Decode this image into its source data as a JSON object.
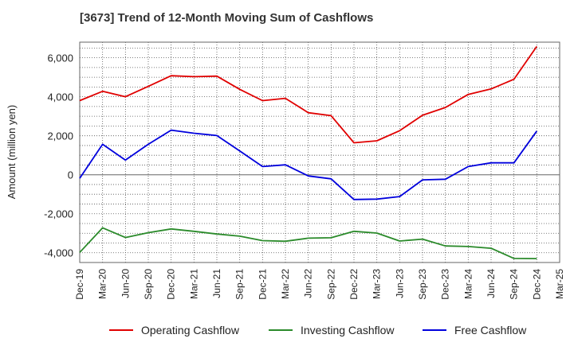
{
  "chart_data": {
    "type": "line",
    "title": "[3673]  Trend of 12-Month Moving Sum of Cashflows",
    "ylabel": "Amount (million yen)",
    "xlabel": "",
    "ylim": [
      -4500,
      6800
    ],
    "yticks": [
      -4000,
      -2000,
      0,
      2000,
      4000,
      6000
    ],
    "ytick_labels": [
      "-4,000",
      "-2,000",
      "0",
      "2,000",
      "4,000",
      "6,000"
    ],
    "x": [
      "Dec-19",
      "Mar-20",
      "Jun-20",
      "Sep-20",
      "Dec-20",
      "Mar-21",
      "Jun-21",
      "Sep-21",
      "Dec-21",
      "Mar-22",
      "Jun-22",
      "Sep-22",
      "Dec-22",
      "Mar-23",
      "Jun-23",
      "Sep-23",
      "Dec-23",
      "Mar-24",
      "Jun-24",
      "Sep-24",
      "Dec-24",
      "Mar-25"
    ],
    "grid": true,
    "legend": "bottom",
    "series": [
      {
        "name": "Operating Cashflow",
        "color": "#e00000",
        "values": [
          3800,
          4280,
          4000,
          4530,
          5080,
          5030,
          5060,
          4380,
          3800,
          3920,
          3180,
          3030,
          1640,
          1740,
          2260,
          3050,
          3450,
          4120,
          4400,
          4900,
          6580,
          null
        ]
      },
      {
        "name": "Investing Cashflow",
        "color": "#2a8a2a",
        "values": [
          -3980,
          -2720,
          -3220,
          -2970,
          -2780,
          -2900,
          -3040,
          -3150,
          -3380,
          -3410,
          -3250,
          -3230,
          -2900,
          -2990,
          -3400,
          -3300,
          -3650,
          -3680,
          -3770,
          -4290,
          -4300,
          null
        ]
      },
      {
        "name": "Free Cashflow",
        "color": "#0000dd",
        "values": [
          -180,
          1560,
          750,
          1560,
          2290,
          2130,
          2010,
          1220,
          420,
          510,
          -60,
          -210,
          -1270,
          -1250,
          -1120,
          -260,
          -230,
          420,
          610,
          610,
          2240,
          null
        ]
      }
    ]
  }
}
